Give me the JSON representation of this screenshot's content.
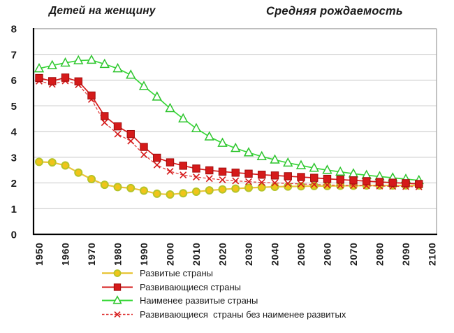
{
  "header": {
    "unit_label": "Детей на женщину",
    "title": "Средняя рождаемость"
  },
  "chart_data": {
    "type": "line",
    "title": "Средняя рождаемость",
    "y_axis_label": "Детей на женщину",
    "ylim": [
      0,
      8
    ],
    "y_ticks": [
      0,
      1,
      2,
      3,
      4,
      5,
      6,
      7,
      8
    ],
    "x_ticks": [
      1950,
      1960,
      1970,
      1980,
      1990,
      2000,
      2010,
      2020,
      2030,
      2040,
      2050,
      2060,
      2070,
      2080,
      2090,
      2100
    ],
    "grid": "horizontal",
    "legend_position": "bottom-left",
    "frame_color": "#a8a8a8",
    "axis_color": "#000000",
    "grid_color": "#c6c6c6",
    "x": [
      1950,
      1955,
      1960,
      1965,
      1970,
      1975,
      1980,
      1985,
      1990,
      1995,
      2000,
      2005,
      2010,
      2015,
      2020,
      2025,
      2030,
      2035,
      2040,
      2045,
      2050,
      2055,
      2060,
      2065,
      2070,
      2075,
      2080,
      2085,
      2090,
      2095
    ],
    "series": [
      {
        "id": "developed",
        "name": "Развитые страны",
        "marker": "circle",
        "line_style": "solid",
        "color": "#e9c53b",
        "marker_fill": "#f0c419",
        "marker_stroke": "#b5c428",
        "values": [
          2.82,
          2.8,
          2.68,
          2.4,
          2.15,
          1.93,
          1.84,
          1.8,
          1.7,
          1.58,
          1.55,
          1.6,
          1.66,
          1.71,
          1.75,
          1.78,
          1.81,
          1.83,
          1.85,
          1.86,
          1.87,
          1.88,
          1.88,
          1.89,
          1.89,
          1.9,
          1.9,
          1.9,
          1.9,
          1.9
        ]
      },
      {
        "id": "developing",
        "name": "Развивающиеся страны",
        "marker": "square",
        "line_style": "solid",
        "color": "#d51a1a",
        "marker_fill": "#d51a1a",
        "marker_stroke": "#9e0b0b",
        "values": [
          6.08,
          5.96,
          6.1,
          5.95,
          5.4,
          4.6,
          4.2,
          3.9,
          3.4,
          2.98,
          2.8,
          2.67,
          2.56,
          2.49,
          2.44,
          2.4,
          2.36,
          2.32,
          2.29,
          2.26,
          2.23,
          2.2,
          2.16,
          2.13,
          2.1,
          2.07,
          2.04,
          2.01,
          1.99,
          1.96
        ]
      },
      {
        "id": "least-developed",
        "name": "Наименее развитые страны",
        "marker": "triangle-open",
        "line_style": "solid",
        "color": "#39d839",
        "marker_fill": "#ffffff",
        "marker_stroke": "#2ec42e",
        "values": [
          6.45,
          6.57,
          6.67,
          6.76,
          6.78,
          6.62,
          6.45,
          6.2,
          5.76,
          5.35,
          4.9,
          4.5,
          4.12,
          3.8,
          3.55,
          3.35,
          3.18,
          3.03,
          2.9,
          2.78,
          2.68,
          2.58,
          2.5,
          2.43,
          2.36,
          2.3,
          2.25,
          2.2,
          2.15,
          2.1
        ]
      },
      {
        "id": "developing-excl-least",
        "name": "Развивающиеся  страны без наименее развитых",
        "marker": "x",
        "line_style": "dashed",
        "color": "#e03a3a",
        "marker_fill": "none",
        "marker_stroke": "#d51a1a",
        "values": [
          5.96,
          5.84,
          5.97,
          5.82,
          5.25,
          4.35,
          3.9,
          3.63,
          3.1,
          2.7,
          2.45,
          2.31,
          2.23,
          2.17,
          2.12,
          2.08,
          2.05,
          2.02,
          2.0,
          1.98,
          1.96,
          1.94,
          1.92,
          1.91,
          1.9,
          1.89,
          1.88,
          1.87,
          1.86,
          1.85
        ]
      }
    ]
  }
}
